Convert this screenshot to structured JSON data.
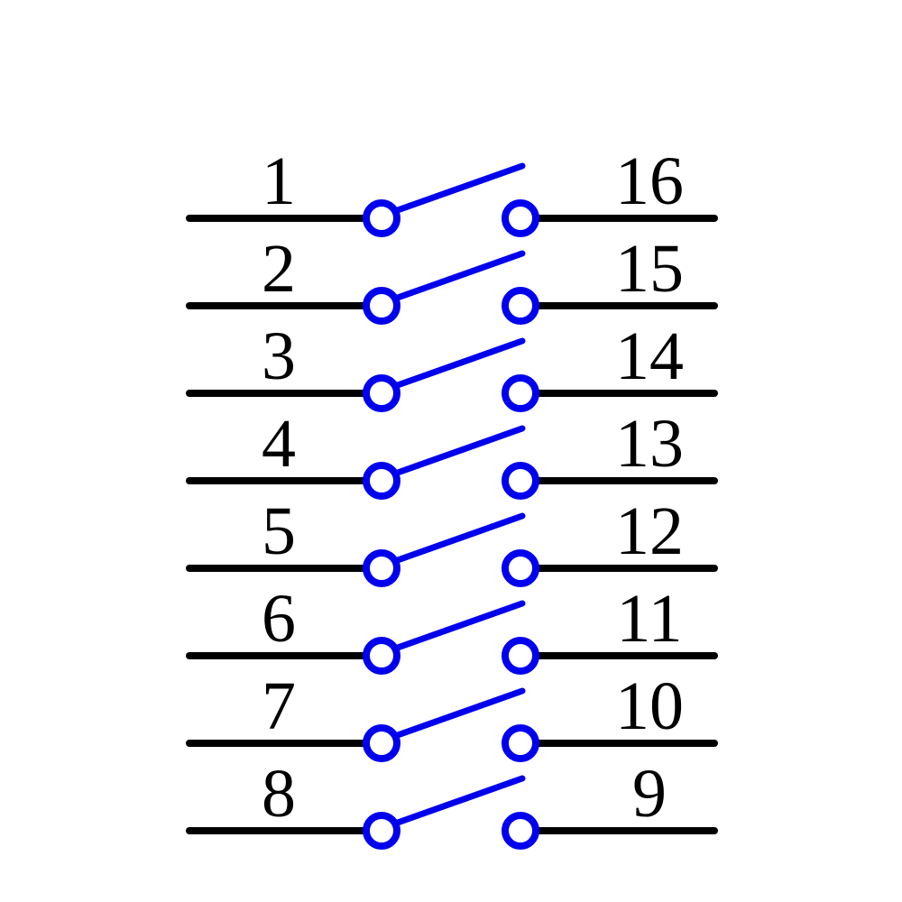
{
  "switches": [
    {
      "left": "1",
      "right": "16"
    },
    {
      "left": "2",
      "right": "15"
    },
    {
      "left": "3",
      "right": "14"
    },
    {
      "left": "4",
      "right": "13"
    },
    {
      "left": "5",
      "right": "12"
    },
    {
      "left": "6",
      "right": "11"
    },
    {
      "left": "7",
      "right": "10"
    },
    {
      "left": "8",
      "right": "9"
    }
  ]
}
